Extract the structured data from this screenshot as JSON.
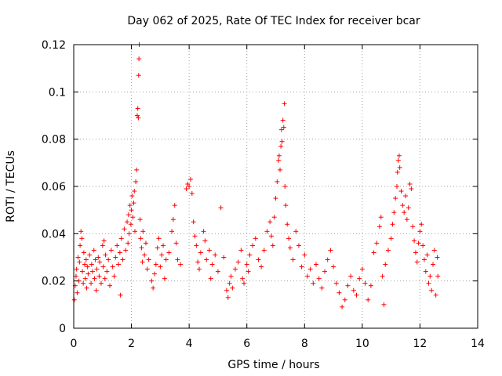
{
  "chart_data": {
    "type": "scatter",
    "title": "Day 062 of 2025, Rate Of TEC Index for receiver bcar",
    "xlabel": "GPS time / hours",
    "ylabel": "ROTI / TECUs",
    "xlim": [
      0,
      14
    ],
    "ylim": [
      0,
      0.12
    ],
    "xticks": [
      "0",
      "2",
      "4",
      "6",
      "8",
      "10",
      "12",
      "14"
    ],
    "yticks": [
      "0",
      "0.02",
      "0.04",
      "0.06",
      "0.08",
      "0.1",
      "0.12"
    ],
    "grid": true,
    "marker": "+",
    "color": "#ff0000",
    "series": [
      {
        "name": "ROTI",
        "points": [
          [
            0.02,
            0.012
          ],
          [
            0.05,
            0.018
          ],
          [
            0.08,
            0.022
          ],
          [
            0.1,
            0.025
          ],
          [
            0.12,
            0.015
          ],
          [
            0.15,
            0.03
          ],
          [
            0.18,
            0.02
          ],
          [
            0.2,
            0.028
          ],
          [
            0.22,
            0.035
          ],
          [
            0.25,
            0.041
          ],
          [
            0.28,
            0.038
          ],
          [
            0.3,
            0.024
          ],
          [
            0.33,
            0.019
          ],
          [
            0.35,
            0.032
          ],
          [
            0.38,
            0.027
          ],
          [
            0.4,
            0.021
          ],
          [
            0.43,
            0.029
          ],
          [
            0.45,
            0.017
          ],
          [
            0.48,
            0.026
          ],
          [
            0.5,
            0.023
          ],
          [
            0.55,
            0.031
          ],
          [
            0.6,
            0.019
          ],
          [
            0.62,
            0.027
          ],
          [
            0.65,
            0.024
          ],
          [
            0.7,
            0.033
          ],
          [
            0.72,
            0.021
          ],
          [
            0.75,
            0.029
          ],
          [
            0.78,
            0.016
          ],
          [
            0.8,
            0.025
          ],
          [
            0.85,
            0.03
          ],
          [
            0.88,
            0.022
          ],
          [
            0.9,
            0.028
          ],
          [
            0.95,
            0.019
          ],
          [
            1.0,
            0.035
          ],
          [
            1.02,
            0.026
          ],
          [
            1.05,
            0.037
          ],
          [
            1.08,
            0.021
          ],
          [
            1.1,
            0.031
          ],
          [
            1.15,
            0.024
          ],
          [
            1.2,
            0.029
          ],
          [
            1.25,
            0.018
          ],
          [
            1.3,
            0.033
          ],
          [
            1.35,
            0.026
          ],
          [
            1.4,
            0.022
          ],
          [
            1.45,
            0.03
          ],
          [
            1.5,
            0.035
          ],
          [
            1.55,
            0.027
          ],
          [
            1.6,
            0.032
          ],
          [
            1.62,
            0.014
          ],
          [
            1.65,
            0.038
          ],
          [
            1.7,
            0.029
          ],
          [
            1.75,
            0.042
          ],
          [
            1.8,
            0.033
          ],
          [
            1.85,
            0.045
          ],
          [
            1.88,
            0.036
          ],
          [
            1.9,
            0.048
          ],
          [
            1.92,
            0.04
          ],
          [
            1.95,
            0.052
          ],
          [
            1.98,
            0.044
          ],
          [
            2.0,
            0.05
          ],
          [
            2.02,
            0.056
          ],
          [
            2.05,
            0.047
          ],
          [
            2.08,
            0.053
          ],
          [
            2.1,
            0.058
          ],
          [
            2.12,
            0.041
          ],
          [
            2.15,
            0.062
          ],
          [
            2.18,
            0.067
          ],
          [
            2.2,
            0.09
          ],
          [
            2.22,
            0.093
          ],
          [
            2.24,
            0.089
          ],
          [
            2.25,
            0.107
          ],
          [
            2.26,
            0.114
          ],
          [
            2.27,
            0.12
          ],
          [
            2.3,
            0.046
          ],
          [
            2.32,
            0.038
          ],
          [
            2.35,
            0.034
          ],
          [
            2.38,
            0.028
          ],
          [
            2.4,
            0.041
          ],
          [
            2.45,
            0.031
          ],
          [
            2.5,
            0.036
          ],
          [
            2.55,
            0.025
          ],
          [
            2.6,
            0.029
          ],
          [
            2.7,
            0.02
          ],
          [
            2.75,
            0.017
          ],
          [
            2.8,
            0.023
          ],
          [
            2.85,
            0.027
          ],
          [
            2.9,
            0.034
          ],
          [
            2.95,
            0.038
          ],
          [
            3.0,
            0.026
          ],
          [
            3.05,
            0.031
          ],
          [
            3.1,
            0.035
          ],
          [
            3.15,
            0.021
          ],
          [
            3.2,
            0.029
          ],
          [
            3.3,
            0.032
          ],
          [
            3.4,
            0.041
          ],
          [
            3.45,
            0.046
          ],
          [
            3.5,
            0.052
          ],
          [
            3.55,
            0.036
          ],
          [
            3.6,
            0.029
          ],
          [
            3.7,
            0.027
          ],
          [
            3.9,
            0.059
          ],
          [
            3.95,
            0.061
          ],
          [
            4.0,
            0.06
          ],
          [
            4.05,
            0.063
          ],
          [
            4.1,
            0.057
          ],
          [
            4.15,
            0.045
          ],
          [
            4.2,
            0.039
          ],
          [
            4.25,
            0.035
          ],
          [
            4.3,
            0.028
          ],
          [
            4.35,
            0.025
          ],
          [
            4.4,
            0.032
          ],
          [
            4.5,
            0.041
          ],
          [
            4.55,
            0.037
          ],
          [
            4.6,
            0.029
          ],
          [
            4.7,
            0.033
          ],
          [
            4.75,
            0.021
          ],
          [
            4.8,
            0.027
          ],
          [
            4.9,
            0.031
          ],
          [
            5.0,
            0.024
          ],
          [
            5.1,
            0.051
          ],
          [
            5.2,
            0.03
          ],
          [
            5.3,
            0.016
          ],
          [
            5.35,
            0.013
          ],
          [
            5.4,
            0.019
          ],
          [
            5.45,
            0.022
          ],
          [
            5.5,
            0.017
          ],
          [
            5.6,
            0.025
          ],
          [
            5.7,
            0.028
          ],
          [
            5.8,
            0.033
          ],
          [
            5.85,
            0.021
          ],
          [
            5.9,
            0.019
          ],
          [
            6.0,
            0.027
          ],
          [
            6.05,
            0.024
          ],
          [
            6.1,
            0.031
          ],
          [
            6.2,
            0.035
          ],
          [
            6.3,
            0.038
          ],
          [
            6.4,
            0.029
          ],
          [
            6.5,
            0.026
          ],
          [
            6.6,
            0.033
          ],
          [
            6.7,
            0.041
          ],
          [
            6.8,
            0.045
          ],
          [
            6.85,
            0.039
          ],
          [
            6.9,
            0.035
          ],
          [
            6.95,
            0.047
          ],
          [
            7.0,
            0.055
          ],
          [
            7.05,
            0.062
          ],
          [
            7.1,
            0.071
          ],
          [
            7.12,
            0.073
          ],
          [
            7.15,
            0.067
          ],
          [
            7.18,
            0.077
          ],
          [
            7.2,
            0.084
          ],
          [
            7.22,
            0.079
          ],
          [
            7.25,
            0.088
          ],
          [
            7.28,
            0.085
          ],
          [
            7.3,
            0.095
          ],
          [
            7.32,
            0.06
          ],
          [
            7.35,
            0.052
          ],
          [
            7.4,
            0.044
          ],
          [
            7.45,
            0.038
          ],
          [
            7.5,
            0.034
          ],
          [
            7.6,
            0.029
          ],
          [
            7.7,
            0.041
          ],
          [
            7.8,
            0.035
          ],
          [
            7.9,
            0.026
          ],
          [
            8.0,
            0.031
          ],
          [
            8.1,
            0.022
          ],
          [
            8.2,
            0.025
          ],
          [
            8.3,
            0.019
          ],
          [
            8.4,
            0.027
          ],
          [
            8.5,
            0.021
          ],
          [
            8.6,
            0.017
          ],
          [
            8.7,
            0.024
          ],
          [
            8.8,
            0.029
          ],
          [
            8.9,
            0.033
          ],
          [
            9.0,
            0.026
          ],
          [
            9.1,
            0.019
          ],
          [
            9.2,
            0.015
          ],
          [
            9.3,
            0.009
          ],
          [
            9.4,
            0.012
          ],
          [
            9.5,
            0.018
          ],
          [
            9.6,
            0.022
          ],
          [
            9.7,
            0.016
          ],
          [
            9.8,
            0.014
          ],
          [
            9.9,
            0.021
          ],
          [
            10.0,
            0.025
          ],
          [
            10.1,
            0.019
          ],
          [
            10.2,
            0.012
          ],
          [
            10.3,
            0.018
          ],
          [
            10.4,
            0.032
          ],
          [
            10.5,
            0.036
          ],
          [
            10.6,
            0.043
          ],
          [
            10.65,
            0.047
          ],
          [
            10.7,
            0.022
          ],
          [
            10.75,
            0.01
          ],
          [
            10.8,
            0.027
          ],
          [
            10.9,
            0.033
          ],
          [
            11.0,
            0.038
          ],
          [
            11.05,
            0.044
          ],
          [
            11.1,
            0.049
          ],
          [
            11.15,
            0.055
          ],
          [
            11.2,
            0.06
          ],
          [
            11.22,
            0.066
          ],
          [
            11.25,
            0.071
          ],
          [
            11.28,
            0.073
          ],
          [
            11.3,
            0.068
          ],
          [
            11.35,
            0.058
          ],
          [
            11.4,
            0.052
          ],
          [
            11.45,
            0.049
          ],
          [
            11.5,
            0.056
          ],
          [
            11.55,
            0.046
          ],
          [
            11.6,
            0.051
          ],
          [
            11.65,
            0.061
          ],
          [
            11.7,
            0.059
          ],
          [
            11.75,
            0.043
          ],
          [
            11.8,
            0.037
          ],
          [
            11.85,
            0.032
          ],
          [
            11.9,
            0.028
          ],
          [
            11.95,
            0.036
          ],
          [
            12.0,
            0.041
          ],
          [
            12.05,
            0.044
          ],
          [
            12.1,
            0.035
          ],
          [
            12.15,
            0.029
          ],
          [
            12.2,
            0.024
          ],
          [
            12.25,
            0.031
          ],
          [
            12.3,
            0.019
          ],
          [
            12.35,
            0.022
          ],
          [
            12.4,
            0.016
          ],
          [
            12.45,
            0.027
          ],
          [
            12.5,
            0.033
          ],
          [
            12.55,
            0.014
          ],
          [
            12.6,
            0.03
          ],
          [
            12.62,
            0.022
          ]
        ]
      }
    ]
  }
}
